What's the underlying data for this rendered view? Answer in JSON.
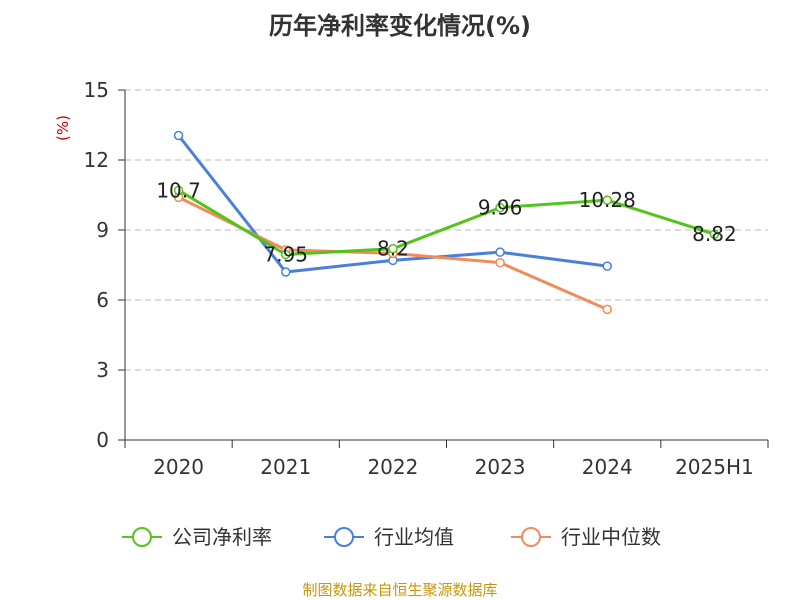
{
  "chart_data": {
    "type": "line",
    "title": "历年净利率变化情况(%)",
    "ylabel": "(%)",
    "ylim": [
      0,
      15
    ],
    "yticks": [
      0,
      3,
      6,
      9,
      12,
      15
    ],
    "categories": [
      "2020",
      "2021",
      "2022",
      "2023",
      "2024",
      "2025H1"
    ],
    "grid": true,
    "legend_position": "bottom",
    "series": [
      {
        "name": "公司净利率",
        "color": "#52c41a",
        "labeled": true,
        "values": [
          10.7,
          7.95,
          8.2,
          9.96,
          10.28,
          8.82
        ],
        "labels": [
          "10.7",
          "7.95",
          "8.2",
          "9.96",
          "10.28",
          "8.82"
        ]
      },
      {
        "name": "行业均值",
        "color": "#4a7fdc",
        "labeled": false,
        "values": [
          13.05,
          7.2,
          7.7,
          8.05,
          7.45,
          null
        ]
      },
      {
        "name": "行业中位数",
        "color": "#f08c5a",
        "labeled": false,
        "values": [
          10.4,
          8.15,
          8.0,
          7.6,
          5.6,
          null
        ]
      }
    ]
  },
  "source_text": "制图数据来自恒生聚源数据库"
}
